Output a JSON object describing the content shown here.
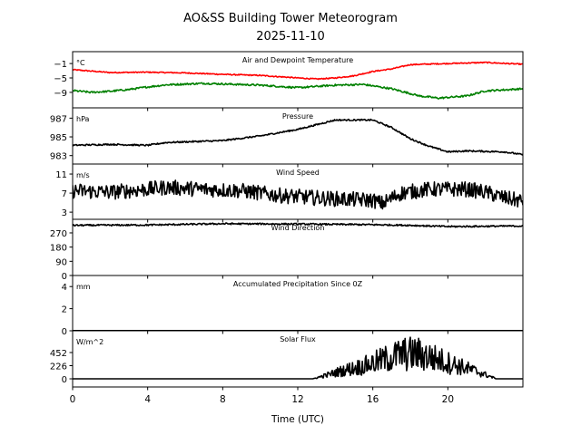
{
  "chart_data": {
    "type": "line",
    "title": "AO&SS Building Tower Meteorogram",
    "subtitle": "2025-11-10",
    "xlabel": "Time (UTC)",
    "xlim": [
      0,
      24
    ],
    "xticks": [
      0,
      4,
      8,
      12,
      16,
      20
    ],
    "colors": {
      "air": "#ff0000",
      "dew": "#008000",
      "default": "#000000"
    },
    "panels": [
      {
        "name": "temperature",
        "title": "Air and Dewpoint Temperature",
        "unit": "°C",
        "ylim": [
          -13.3,
          2.3
        ],
        "yticks": [
          -1,
          -5,
          -9
        ],
        "ytick_labels": [
          "−1",
          "−5",
          "−9"
        ],
        "series": [
          {
            "name": "Air Temperature",
            "color": "#ff0000",
            "noise": 0.15,
            "x": [
              0,
              1,
              2,
              4,
              6,
              8,
              10,
              12,
              13,
              14,
              15,
              16,
              17,
              18,
              20,
              22,
              24
            ],
            "y": [
              -2.7,
              -3.1,
              -3.5,
              -3.4,
              -3.6,
              -4.0,
              -4.3,
              -5.0,
              -5.3,
              -5.0,
              -4.4,
              -3.2,
              -2.5,
              -1.3,
              -1.0,
              -0.7,
              -1.2
            ]
          },
          {
            "name": "Dewpoint",
            "color": "#008000",
            "noise": 0.25,
            "x": [
              0,
              1,
              2,
              3,
              4,
              5,
              7,
              10,
              12,
              14,
              15.5,
              17,
              18.5,
              19.5,
              21,
              22,
              24
            ],
            "y": [
              -8.5,
              -9.0,
              -8.7,
              -8.2,
              -7.5,
              -6.9,
              -6.5,
              -7.0,
              -7.7,
              -7.0,
              -6.8,
              -8.0,
              -10.0,
              -10.6,
              -10.0,
              -8.6,
              -8.0
            ]
          }
        ]
      },
      {
        "name": "pressure",
        "title": "Pressure",
        "unit": "hPa",
        "ylim": [
          982.1,
          988.1
        ],
        "yticks": [
          987,
          985,
          983
        ],
        "ytick_labels": [
          "987",
          "985",
          "983"
        ],
        "series": [
          {
            "name": "Pressure",
            "color": "#000000",
            "noise": 0.08,
            "x": [
              0,
              2,
              4,
              5,
              8,
              10,
              12,
              13,
              14,
              16,
              17,
              18,
              19,
              20,
              21,
              23,
              24
            ],
            "y": [
              984.1,
              984.2,
              984.1,
              984.4,
              984.6,
              985.1,
              985.8,
              986.3,
              986.8,
              986.8,
              986.0,
              984.8,
              984.0,
              983.4,
              983.5,
              983.4,
              983.1
            ]
          }
        ]
      },
      {
        "name": "wind-speed",
        "title": "Wind Speed",
        "unit": "m/s",
        "ylim": [
          1.5,
          13.1
        ],
        "yticks": [
          11,
          7,
          3
        ],
        "ytick_labels": [
          "11",
          "7",
          "3"
        ],
        "series": [
          {
            "name": "Wind Speed",
            "color": "#000000",
            "noise": 1.6,
            "x": [
              0,
              2,
              4,
              5,
              7,
              9,
              11,
              13,
              14,
              16,
              16.5,
              17.5,
              19,
              21,
              22,
              23,
              24
            ],
            "y": [
              7.5,
              7.2,
              7.8,
              8.2,
              7.8,
              7.5,
              6.5,
              6.0,
              5.8,
              5.5,
              4.8,
              7.0,
              7.8,
              7.8,
              7.2,
              6.0,
              5.3
            ]
          }
        ]
      },
      {
        "name": "wind-direction",
        "title": "Wind Direction",
        "unit": "",
        "ylim": [
          0,
          356
        ],
        "yticks": [
          270,
          180,
          90,
          0
        ],
        "ytick_labels": [
          "270",
          "180",
          "90",
          "0"
        ],
        "series": [
          {
            "name": "Wind Direction",
            "color": "#000000",
            "noise": 5,
            "x": [
              0,
              4,
              8,
              12,
              16,
              18,
              20,
              22,
              24
            ],
            "y": [
              318,
              320,
              328,
              326,
              322,
              318,
              310,
              312,
              314
            ]
          }
        ]
      },
      {
        "name": "precipitation",
        "title": "Accumulated Precipitation Since 0Z",
        "unit": "mm",
        "ylim": [
          0,
          5
        ],
        "yticks": [
          4,
          2,
          0
        ],
        "ytick_labels": [
          "4",
          "2",
          "0"
        ],
        "series": [
          {
            "name": "Accumulated Precipitation",
            "color": "#000000",
            "noise": 0,
            "x": [
              0,
              24
            ],
            "y": [
              0,
              0
            ]
          }
        ]
      },
      {
        "name": "solar-flux",
        "title": "Solar Flux",
        "unit": "W/m^2",
        "ylim": [
          -140,
          826
        ],
        "yticks": [
          452,
          226,
          0
        ],
        "ytick_labels": [
          "452",
          "226",
          "0"
        ],
        "series": [
          {
            "name": "Solar Flux",
            "color": "#000000",
            "noise": 0.45,
            "noise_mode": "relative",
            "x": [
              0,
              12.8,
              13.5,
              14.5,
              15.5,
              16.5,
              17.5,
              18.3,
              19,
              19.8,
              20.8,
              21.5,
              22.6,
              24
            ],
            "y": [
              0,
              0,
              60,
              150,
              220,
              320,
              420,
              430,
              380,
              300,
              200,
              130,
              0,
              0
            ]
          }
        ]
      }
    ]
  }
}
